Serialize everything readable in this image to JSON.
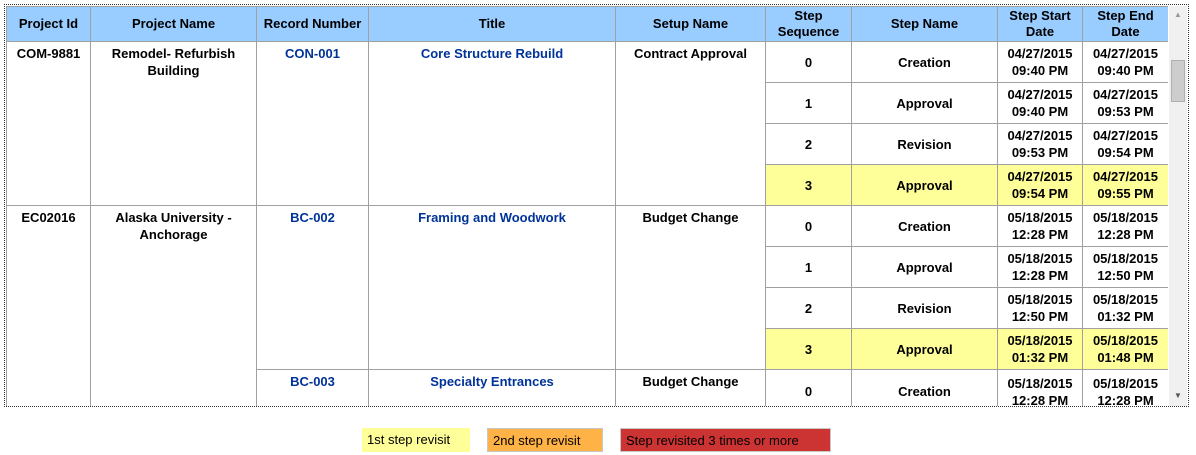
{
  "headers": [
    "Project Id",
    "Project Name",
    "Record Number",
    "Title",
    "Setup Name",
    "Step Sequence",
    "Step Name",
    "Step Start Date",
    "Step End Date"
  ],
  "groups": [
    {
      "project_id": "COM-9881",
      "project_name": "Remodel- Refurbish Building",
      "records": [
        {
          "record_number": "CON-001",
          "title": "Core Structure Rebuild",
          "setup_name": "Contract Approval",
          "steps": [
            {
              "seq": "0",
              "name": "Creation",
              "start": [
                "04/27/2015",
                "09:40 PM"
              ],
              "end": [
                "04/27/2015",
                "09:40 PM"
              ],
              "highlight": false
            },
            {
              "seq": "1",
              "name": "Approval",
              "start": [
                "04/27/2015",
                "09:40 PM"
              ],
              "end": [
                "04/27/2015",
                "09:53 PM"
              ],
              "highlight": false
            },
            {
              "seq": "2",
              "name": "Revision",
              "start": [
                "04/27/2015",
                "09:53 PM"
              ],
              "end": [
                "04/27/2015",
                "09:54 PM"
              ],
              "highlight": false
            },
            {
              "seq": "3",
              "name": "Approval",
              "start": [
                "04/27/2015",
                "09:54 PM"
              ],
              "end": [
                "04/27/2015",
                "09:55 PM"
              ],
              "highlight": true
            }
          ]
        }
      ]
    },
    {
      "project_id": "EC02016",
      "project_name": "Alaska University - Anchorage",
      "records": [
        {
          "record_number": "BC-002",
          "title": "Framing and Woodwork",
          "setup_name": "Budget Change",
          "steps": [
            {
              "seq": "0",
              "name": "Creation",
              "start": [
                "05/18/2015",
                "12:28 PM"
              ],
              "end": [
                "05/18/2015",
                "12:28 PM"
              ],
              "highlight": false
            },
            {
              "seq": "1",
              "name": "Approval",
              "start": [
                "05/18/2015",
                "12:28 PM"
              ],
              "end": [
                "05/18/2015",
                "12:50 PM"
              ],
              "highlight": false
            },
            {
              "seq": "2",
              "name": "Revision",
              "start": [
                "05/18/2015",
                "12:50 PM"
              ],
              "end": [
                "05/18/2015",
                "01:32 PM"
              ],
              "highlight": false
            },
            {
              "seq": "3",
              "name": "Approval",
              "start": [
                "05/18/2015",
                "01:32 PM"
              ],
              "end": [
                "05/18/2015",
                "01:48 PM"
              ],
              "highlight": true
            }
          ]
        },
        {
          "record_number": "BC-003",
          "title": "Specialty Entrances",
          "setup_name": "Budget Change",
          "steps": [
            {
              "seq": "0",
              "name": "Creation",
              "start": [
                "05/18/2015",
                "12:28 PM"
              ],
              "end": [
                "05/18/2015",
                "12:28 PM"
              ],
              "highlight": false
            }
          ]
        }
      ]
    }
  ],
  "legend": [
    {
      "label": "1st step revisit",
      "color": "#ffff99"
    },
    {
      "label": "2nd step revisit",
      "color": "#ffb347"
    },
    {
      "label": "Step revisited 3 times or more",
      "color": "#cc3333"
    }
  ],
  "colors": {
    "header": "#99ccff",
    "link": "#003399",
    "highlight": "#ffff99"
  }
}
